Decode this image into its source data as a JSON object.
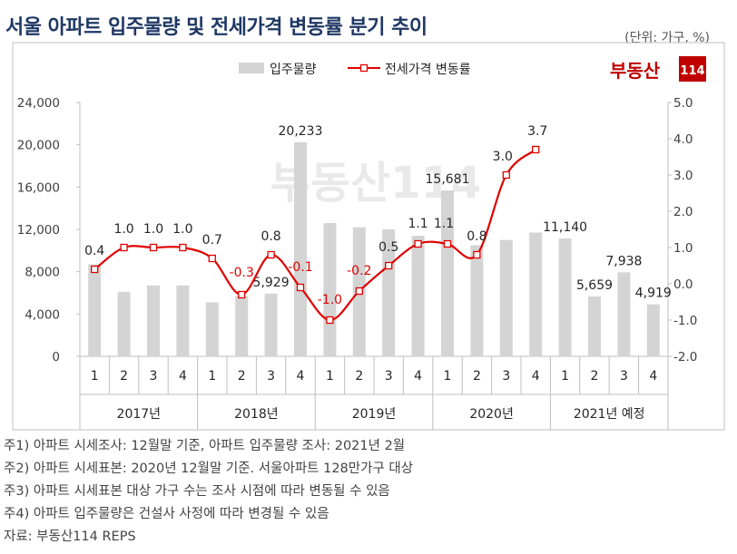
{
  "title": "서울 아파트 입주물량 및 전세가격 변동률 분기 추이",
  "unit_label": "(단위: 가구, %)",
  "logo": {
    "text_main": "부동산",
    "text_num": "114",
    "color": "#c00000"
  },
  "watermark": {
    "text": "부동산114"
  },
  "chart_data": {
    "type": "bar+line",
    "legend_position": "top-center",
    "quarters": [
      "1",
      "2",
      "3",
      "4",
      "1",
      "2",
      "3",
      "4",
      "1",
      "2",
      "3",
      "4",
      "1",
      "2",
      "3",
      "4",
      "1",
      "2",
      "3",
      "4"
    ],
    "years": [
      {
        "label": "2017년",
        "span": 4
      },
      {
        "label": "2018년",
        "span": 4
      },
      {
        "label": "2019년",
        "span": 4
      },
      {
        "label": "2020년",
        "span": 4
      },
      {
        "label": "2021년 예정",
        "span": 4
      }
    ],
    "series": [
      {
        "name": "입주물량",
        "type": "bar",
        "axis": "left",
        "color": "#d4d4d4",
        "values": [
          8700,
          6100,
          6700,
          6700,
          5100,
          5700,
          5929,
          20233,
          12600,
          12200,
          12000,
          11400,
          15681,
          10500,
          11000,
          11700,
          11140,
          5659,
          7938,
          4919
        ],
        "labels": [
          "",
          "",
          "",
          "",
          "",
          "",
          "5,929",
          "20,233",
          "",
          "",
          "",
          "",
          "15,681",
          "",
          "",
          "",
          "11,140",
          "5,659",
          "7,938",
          "4,919"
        ]
      },
      {
        "name": "전세가격 변동률",
        "type": "line",
        "axis": "right",
        "color": "#e00000",
        "values": [
          0.4,
          1.0,
          1.0,
          1.0,
          0.7,
          -0.3,
          0.8,
          -0.1,
          -1.0,
          -0.2,
          0.5,
          1.1,
          1.1,
          0.8,
          3.0,
          3.7
        ],
        "labels": [
          "0.4",
          "1.0",
          "1.0",
          "1.0",
          "0.7",
          "-0.3",
          "0.8",
          "-0.1",
          "-1.0",
          "-0.2",
          "0.5",
          "1.1",
          "1.1",
          "0.8",
          "3.0",
          "3.7"
        ],
        "red_labels": [
          5,
          7,
          8,
          9
        ]
      }
    ],
    "y_left": {
      "min": 0,
      "max": 24000,
      "ticks": [
        "0",
        "4,000",
        "8,000",
        "12,000",
        "16,000",
        "20,000",
        "24,000"
      ]
    },
    "y_right": {
      "min": -2.0,
      "max": 5.0,
      "ticks": [
        "-2.0",
        "-1.0",
        "0.0",
        "1.0",
        "2.0",
        "3.0",
        "4.0",
        "5.0"
      ]
    },
    "grid": false
  },
  "notes": [
    "주1) 아파트 시세조사: 12월말 기준, 아파트 입주물량 조사: 2021년 2월",
    "주2) 아파트 시세표본: 2020년 12월말 기준. 서울아파트 128만가구 대상",
    "주3) 아파트 시세표본 대상 가구 수는 조사 시점에 따라 변동될 수 있음",
    "주4) 아파트 입주물량은 건설사 사정에 따라 변경될 수 있음",
    "자료: 부동산114 REPS"
  ]
}
